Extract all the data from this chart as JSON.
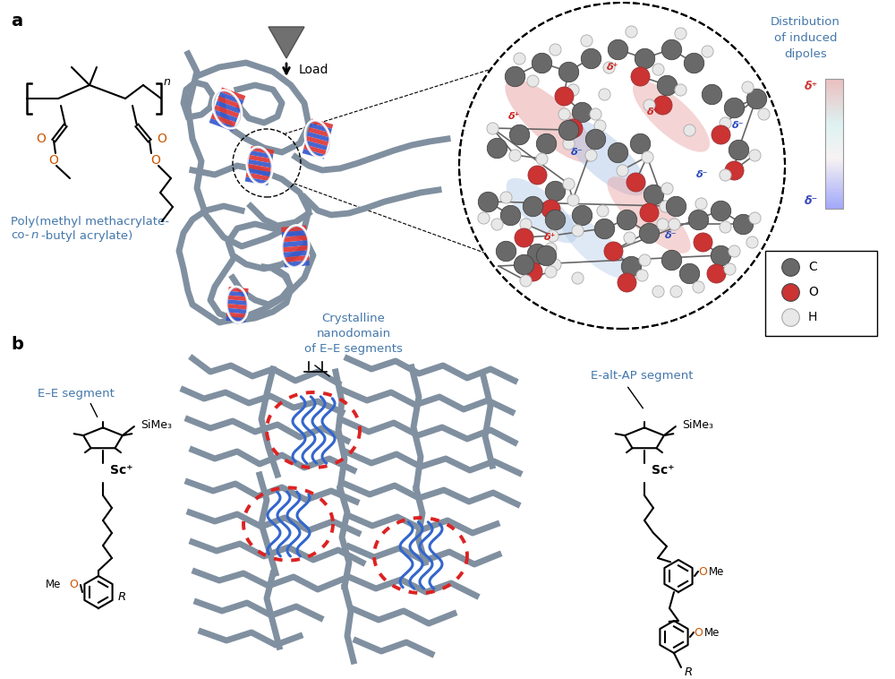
{
  "bg_color": "#ffffff",
  "panel_a_label": "a",
  "panel_b_label": "b",
  "chain_color": "#8090a0",
  "chain_lw": 5.0,
  "dipole_title": "Distribution\nof induced\ndipoles",
  "legend_items": [
    [
      "C",
      "#696969"
    ],
    [
      "O",
      "#cc3333"
    ],
    [
      "H",
      "#e8e8e8"
    ]
  ],
  "ee_segment_label": "E–E segment",
  "crystal_label": "Crystalline\nnanodomain\nof E–E segments",
  "ealtap_label": "E-alt-AP segment",
  "load_label": "Load",
  "label_color": "#4477aa",
  "atom_C_color": "#696969",
  "atom_O_color": "#cc3333",
  "atom_H_color": "#e8e8e8",
  "atom_C_edge": "#444444",
  "atom_O_edge": "#993333",
  "atom_H_edge": "#aaaaaa",
  "stripe_red": "#dd3333",
  "stripe_blue": "#3355cc",
  "dipole_pink": "#e8a0a0",
  "dipole_blue": "#a0b8e0",
  "red_dot_color": "#dd2222",
  "blue_wave_color": "#3366cc"
}
